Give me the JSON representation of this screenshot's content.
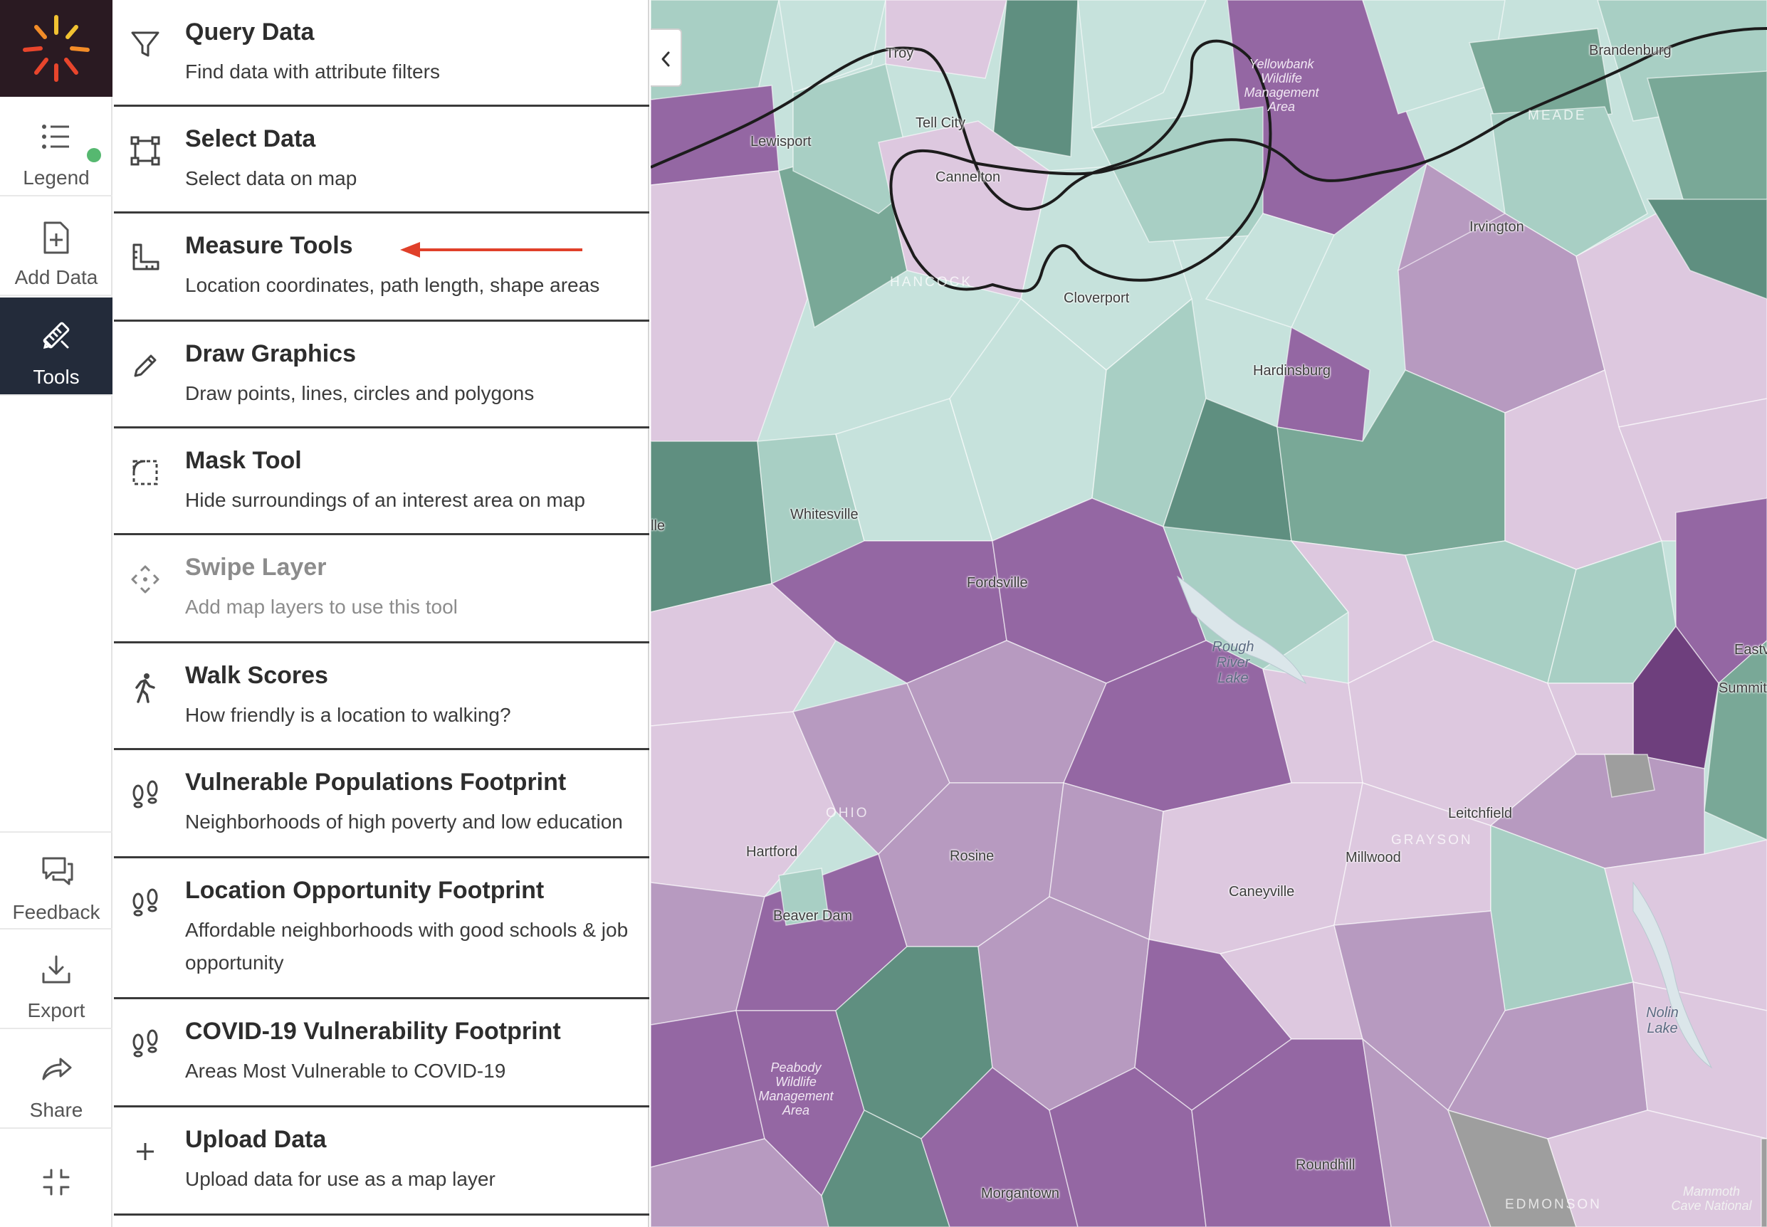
{
  "rail": {
    "items": [
      {
        "label": "Legend",
        "icon": "list-icon"
      },
      {
        "label": "Add Data",
        "icon": "add-file-icon"
      },
      {
        "label": "Tools",
        "icon": "tools-icon"
      },
      {
        "label": "Feedback",
        "icon": "chat-icon"
      },
      {
        "label": "Export",
        "icon": "download-icon"
      },
      {
        "label": "Share",
        "icon": "share-arrow-icon"
      }
    ]
  },
  "tools": [
    {
      "title": "Query Data",
      "desc": "Find data with attribute filters",
      "icon": "filter-icon"
    },
    {
      "title": "Select Data",
      "desc": "Select data on map",
      "icon": "select-square-icon"
    },
    {
      "title": "Measure Tools",
      "desc": "Location coordinates, path length, shape areas",
      "icon": "ruler-icon"
    },
    {
      "title": "Draw Graphics",
      "desc": "Draw points, lines, circles and polygons",
      "icon": "pencil-icon"
    },
    {
      "title": "Mask Tool",
      "desc": "Hide surroundings of an interest area on map",
      "icon": "mask-icon"
    },
    {
      "title": "Swipe Layer",
      "desc": "Add map layers to use this tool",
      "icon": "swipe-icon"
    },
    {
      "title": "Walk Scores",
      "desc": "How friendly is a location to walking?",
      "icon": "walk-icon"
    },
    {
      "title": "Vulnerable Populations Footprint",
      "desc": "Neighborhoods of high poverty and low education",
      "icon": "footprint-icon"
    },
    {
      "title": "Location Opportunity Footprint",
      "desc": "Affordable neighborhoods with good schools & job opportunity",
      "icon": "footprint-icon"
    },
    {
      "title": "COVID-19 Vulnerability Footprint",
      "desc": "Areas Most Vulnerable to COVID-19",
      "icon": "footprint-icon"
    },
    {
      "title": "Upload Data",
      "desc": "Upload data for use as a map layer",
      "icon": "plus-icon"
    }
  ],
  "map": {
    "places": [
      "Troy",
      "Tell City",
      "Cannelton",
      "Lewisport",
      "Brandenburg",
      "Irvington",
      "Cloverport",
      "Hardinsburg",
      "Whitesville",
      "Fordsville",
      "Rosine",
      "Hartford",
      "Beaver Dam",
      "Caneyville",
      "Millwood",
      "Leitchfield",
      "Summit",
      "Eastv",
      "Roundhill",
      "Morgantown",
      "lle"
    ],
    "counties": [
      "MEADE",
      "HANCOCK",
      "OHIO",
      "GRAYSON",
      "EDMONSON"
    ],
    "areas": [
      "Yellowbank Wildlife Management Area",
      "Peabody Wildlife Management Area",
      "Mammoth Cave National"
    ],
    "water": [
      "Rough River Lake",
      "Nolin Lake"
    ]
  },
  "colors": {
    "green_dark": "#5f8f80",
    "green": "#79a897",
    "green_light": "#a8cfc4",
    "mint": "#c6e2dc",
    "lilac_light": "#ddc8df",
    "lilac": "#b79ac0",
    "purple": "#9467a3",
    "purple_dark": "#6e3f7d",
    "accent_arrow": "#e0402a",
    "rail_active": "#232b3a"
  }
}
